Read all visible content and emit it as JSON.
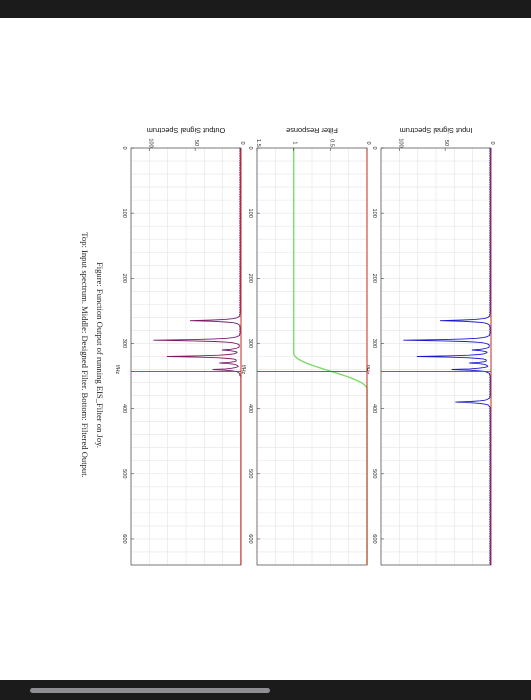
{
  "caption": {
    "line1": "Figure: Function Output of running EIS_Filter on Joy.",
    "line2": "Top: Input spectrum. Middle: Designed Filter. Bottom: Filtered Output."
  },
  "colors": {
    "input": "#1a1ad0",
    "filter": "#7ddc6a",
    "output": "#7a1a6a",
    "marker": "#c8281e",
    "grid": "#e4e4e4",
    "chrome": "#1b1b1b"
  },
  "chart_data": [
    {
      "type": "line",
      "title": "Input Signal Spectrum",
      "xlabel": "f/Hz",
      "x_ticks": [
        "0",
        "100",
        "200",
        "300",
        "400",
        "500",
        "600"
      ],
      "y_ticks": [
        "0",
        "50",
        "100"
      ],
      "xlim": [
        0,
        640
      ],
      "ylim": [
        0,
        120
      ],
      "grid": true,
      "baseline": 1,
      "peaks": [
        {
          "x": 265,
          "y": 55
        },
        {
          "x": 295,
          "y": 95
        },
        {
          "x": 310,
          "y": 20
        },
        {
          "x": 320,
          "y": 80
        },
        {
          "x": 330,
          "y": 22
        },
        {
          "x": 340,
          "y": 42
        },
        {
          "x": 390,
          "y": 38
        }
      ],
      "marker_x": 343,
      "series": [
        {
          "values": "spectrum with narrow peaks between 250 and 400 f/Hz"
        }
      ]
    },
    {
      "type": "line",
      "title": "Filter Response",
      "xlabel": "f/Hz",
      "x_ticks": [
        "0",
        "100",
        "200",
        "300",
        "400",
        "500",
        "600"
      ],
      "y_ticks": [
        "0",
        "0.5",
        "1",
        "1.5"
      ],
      "xlim": [
        0,
        640
      ],
      "ylim": [
        0,
        1.5
      ],
      "grid": true,
      "passband_gain": 1,
      "stopband_gain": 0,
      "transition": [
        315,
        370
      ],
      "marker_x": 343
    },
    {
      "type": "line",
      "title": "Output Signal Spectrum",
      "xlabel": "f/Hz",
      "x_ticks": [
        "0",
        "100",
        "200",
        "300",
        "400",
        "500",
        "600"
      ],
      "y_ticks": [
        "0",
        "50",
        "100"
      ],
      "xlim": [
        0,
        640
      ],
      "ylim": [
        0,
        120
      ],
      "grid": true,
      "baseline": 1,
      "peaks": [
        {
          "x": 265,
          "y": 55
        },
        {
          "x": 295,
          "y": 95
        },
        {
          "x": 310,
          "y": 20
        },
        {
          "x": 320,
          "y": 80
        },
        {
          "x": 330,
          "y": 22
        },
        {
          "x": 340,
          "y": 30
        }
      ],
      "marker_x": 343
    }
  ]
}
